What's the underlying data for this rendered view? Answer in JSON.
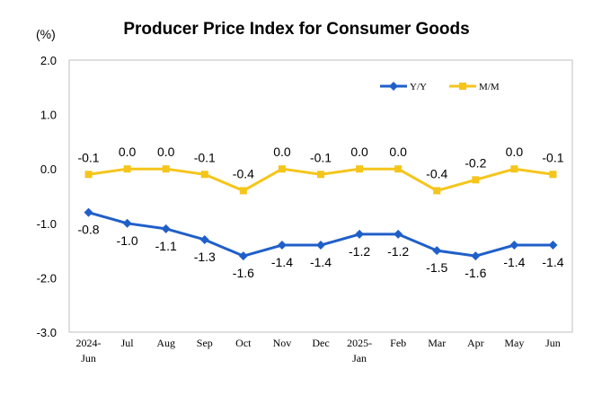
{
  "chart_data": {
    "type": "line",
    "title": "Producer Price Index for Consumer Goods",
    "unit_label": "(%)",
    "xlabel": "",
    "ylabel": "",
    "ylim": [
      -3.0,
      2.0
    ],
    "yticks": [
      "2.0",
      "1.0",
      "0.0",
      "-1.0",
      "-2.0",
      "-3.0"
    ],
    "ytick_values": [
      2.0,
      1.0,
      0.0,
      -1.0,
      -2.0,
      -3.0
    ],
    "categories": [
      [
        "2024-",
        "Jun"
      ],
      [
        "Jul"
      ],
      [
        "Aug"
      ],
      [
        "Sep"
      ],
      [
        "Oct"
      ],
      [
        "Nov"
      ],
      [
        "Dec"
      ],
      [
        "2025-",
        "Jan"
      ],
      [
        "Feb"
      ],
      [
        "Mar"
      ],
      [
        "Apr"
      ],
      [
        "May"
      ],
      [
        "Jun"
      ]
    ],
    "grid": false,
    "legend_position": "top-right",
    "series": [
      {
        "name": "Y/Y",
        "color": "#1f5fc9",
        "marker": "diamond",
        "values": [
          -0.8,
          -1.0,
          -1.1,
          -1.3,
          -1.6,
          -1.4,
          -1.4,
          -1.2,
          -1.2,
          -1.5,
          -1.6,
          -1.4,
          -1.4
        ],
        "labels": [
          "-0.8",
          "-1.0",
          "-1.1",
          "-1.3",
          "-1.6",
          "-1.4",
          "-1.4",
          "-1.2",
          "-1.2",
          "-1.5",
          "-1.6",
          "-1.4",
          "-1.4"
        ]
      },
      {
        "name": "M/M",
        "color": "#f5c51b",
        "marker": "square",
        "values": [
          -0.1,
          0.0,
          0.0,
          -0.1,
          -0.4,
          0.0,
          -0.1,
          0.0,
          0.0,
          -0.4,
          -0.2,
          0.0,
          -0.1
        ],
        "labels": [
          "-0.1",
          "0.0",
          "0.0",
          "-0.1",
          "-0.4",
          "0.0",
          "-0.1",
          "0.0",
          "0.0",
          "-0.4",
          "-0.2",
          "0.0",
          "-0.1"
        ]
      }
    ]
  }
}
